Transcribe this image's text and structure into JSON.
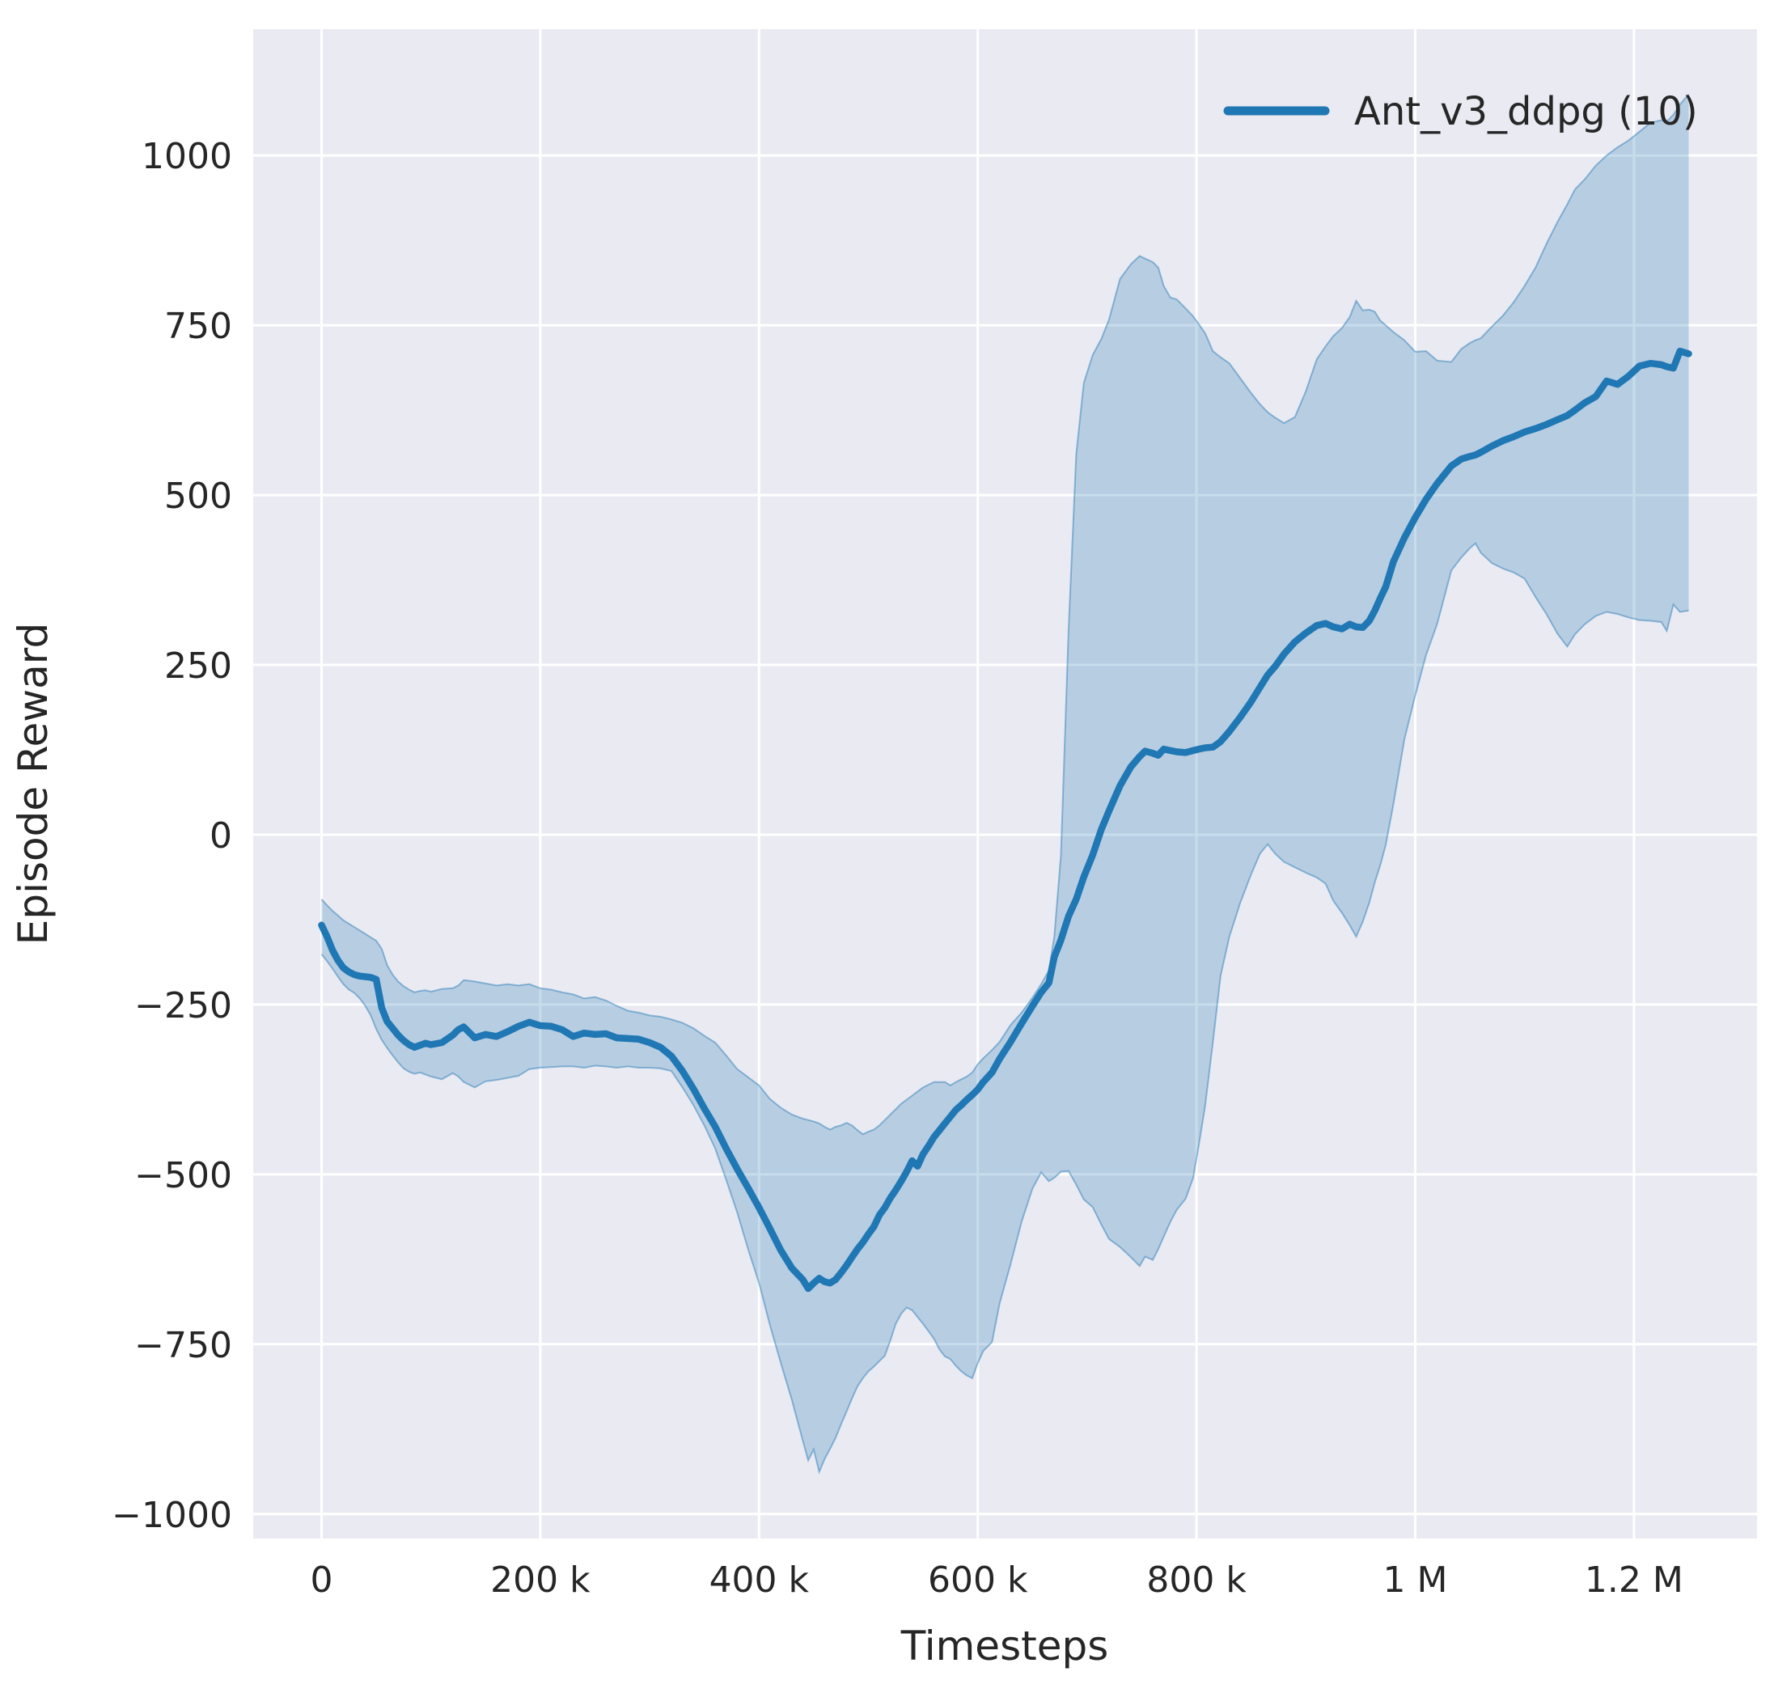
{
  "chart_data": {
    "type": "line",
    "title": "",
    "xlabel": "Timesteps",
    "ylabel": "Episode Reward",
    "x_unit_note": "x values stored in thousands of timesteps",
    "xlim": [
      -62.5,
      1312.5
    ],
    "ylim": [
      -1036,
      1186
    ],
    "grid": true,
    "legend_position": "upper right",
    "xticks": {
      "values": [
        0,
        200,
        400,
        600,
        800,
        1000,
        1200
      ],
      "labels": [
        "0",
        "200 k",
        "400 k",
        "600 k",
        "800 k",
        "1 M",
        "1.2 M"
      ]
    },
    "yticks": {
      "values": [
        -1000,
        -750,
        -500,
        -250,
        0,
        250,
        500,
        750,
        1000
      ],
      "labels": [
        "−1000",
        "−750",
        "−500",
        "−250",
        "0",
        "250",
        "500",
        "750",
        "1000"
      ]
    },
    "colors": {
      "line": "#1f77b4",
      "band": "#1f77b4",
      "band_opacity": 0.25,
      "band_edge_opacity": 0.45,
      "plot_bg": "#eaeaf2",
      "grid": "#ffffff",
      "text": "#262626"
    },
    "legend": [
      {
        "label": "Ant_v3_ddpg (10)",
        "color": "#1f77b4"
      }
    ],
    "series": [
      {
        "name": "Ant_v3_ddpg (10)",
        "point_format": [
          "x_thousands",
          "mean",
          "band_lower",
          "band_upper"
        ],
        "points": [
          [
            0,
            -133,
            -176,
            -95
          ],
          [
            5,
            -150,
            -186,
            -104
          ],
          [
            10,
            -170,
            -197,
            -112
          ],
          [
            15,
            -185,
            -209,
            -119
          ],
          [
            20,
            -196,
            -220,
            -126
          ],
          [
            25,
            -202,
            -228,
            -131
          ],
          [
            30,
            -206,
            -233,
            -136
          ],
          [
            35,
            -208,
            -241,
            -141
          ],
          [
            40,
            -209,
            -252,
            -146
          ],
          [
            45,
            -210,
            -266,
            -151
          ],
          [
            50,
            -213,
            -286,
            -156
          ],
          [
            55,
            -255,
            -302,
            -168
          ],
          [
            60,
            -275,
            -314,
            -192
          ],
          [
            65,
            -285,
            -325,
            -206
          ],
          [
            70,
            -295,
            -335,
            -216
          ],
          [
            75,
            -303,
            -344,
            -223
          ],
          [
            80,
            -309,
            -349,
            -228
          ],
          [
            85,
            -313,
            -352,
            -232
          ],
          [
            90,
            -310,
            -350,
            -230
          ],
          [
            95,
            -307,
            -353,
            -229
          ],
          [
            100,
            -309,
            -356,
            -231
          ],
          [
            110,
            -306,
            -360,
            -227
          ],
          [
            120,
            -295,
            -351,
            -226
          ],
          [
            125,
            -287,
            -356,
            -222
          ],
          [
            130,
            -283,
            -364,
            -214
          ],
          [
            140,
            -299,
            -372,
            -216
          ],
          [
            150,
            -294,
            -363,
            -219
          ],
          [
            160,
            -297,
            -361,
            -222
          ],
          [
            170,
            -290,
            -358,
            -220
          ],
          [
            180,
            -282,
            -355,
            -222
          ],
          [
            190,
            -276,
            -345,
            -220
          ],
          [
            200,
            -281,
            -343,
            -226
          ],
          [
            210,
            -282,
            -342,
            -228
          ],
          [
            220,
            -287,
            -341,
            -232
          ],
          [
            230,
            -297,
            -341,
            -235
          ],
          [
            240,
            -292,
            -343,
            -241
          ],
          [
            250,
            -294,
            -340,
            -239
          ],
          [
            260,
            -293,
            -341,
            -244
          ],
          [
            270,
            -299,
            -343,
            -252
          ],
          [
            280,
            -300,
            -341,
            -259
          ],
          [
            290,
            -301,
            -343,
            -262
          ],
          [
            300,
            -306,
            -343,
            -266
          ],
          [
            310,
            -313,
            -344,
            -268
          ],
          [
            320,
            -326,
            -348,
            -272
          ],
          [
            330,
            -348,
            -372,
            -277
          ],
          [
            340,
            -374,
            -398,
            -285
          ],
          [
            350,
            -403,
            -428,
            -296
          ],
          [
            360,
            -430,
            -462,
            -306
          ],
          [
            370,
            -462,
            -508,
            -325
          ],
          [
            380,
            -492,
            -556,
            -345
          ],
          [
            390,
            -520,
            -610,
            -357
          ],
          [
            400,
            -549,
            -660,
            -369
          ],
          [
            410,
            -580,
            -722,
            -389
          ],
          [
            420,
            -612,
            -778,
            -402
          ],
          [
            430,
            -638,
            -832,
            -412
          ],
          [
            440,
            -655,
            -892,
            -418
          ],
          [
            445,
            -668,
            -921,
            -420
          ],
          [
            450,
            -660,
            -905,
            -422
          ],
          [
            455,
            -653,
            -938,
            -425
          ],
          [
            460,
            -658,
            -919,
            -430
          ],
          [
            465,
            -660,
            -904,
            -434
          ],
          [
            470,
            -655,
            -888,
            -430
          ],
          [
            475,
            -645,
            -868,
            -428
          ],
          [
            480,
            -634,
            -849,
            -424
          ],
          [
            485,
            -622,
            -830,
            -428
          ],
          [
            490,
            -610,
            -812,
            -435
          ],
          [
            495,
            -600,
            -800,
            -441
          ],
          [
            500,
            -588,
            -790,
            -437
          ],
          [
            505,
            -577,
            -783,
            -434
          ],
          [
            510,
            -560,
            -775,
            -428
          ],
          [
            515,
            -549,
            -767,
            -420
          ],
          [
            520,
            -535,
            -745,
            -412
          ],
          [
            525,
            -523,
            -720,
            -404
          ],
          [
            530,
            -510,
            -705,
            -396
          ],
          [
            535,
            -496,
            -696,
            -390
          ],
          [
            540,
            -480,
            -700,
            -384
          ],
          [
            545,
            -488,
            -710,
            -378
          ],
          [
            550,
            -470,
            -720,
            -372
          ],
          [
            555,
            -458,
            -731,
            -368
          ],
          [
            560,
            -445,
            -742,
            -364
          ],
          [
            565,
            -435,
            -758,
            -364
          ],
          [
            570,
            -425,
            -768,
            -364
          ],
          [
            575,
            -415,
            -772,
            -369
          ],
          [
            580,
            -405,
            -782,
            -364
          ],
          [
            585,
            -398,
            -790,
            -360
          ],
          [
            590,
            -390,
            -796,
            -356
          ],
          [
            595,
            -383,
            -800,
            -350
          ],
          [
            600,
            -375,
            -778,
            -338
          ],
          [
            605,
            -364,
            -760,
            -329
          ],
          [
            613,
            -350,
            -747,
            -317
          ],
          [
            620,
            -330,
            -690,
            -305
          ],
          [
            630,
            -305,
            -632,
            -280
          ],
          [
            640,
            -278,
            -570,
            -262
          ],
          [
            650,
            -252,
            -521,
            -240
          ],
          [
            658,
            -232,
            -497,
            -220
          ],
          [
            665,
            -218,
            -510,
            -200
          ],
          [
            670,
            -180,
            -505,
            -150
          ],
          [
            676,
            -155,
            -496,
            -30
          ],
          [
            683,
            -120,
            -495,
            300
          ],
          [
            690,
            -95,
            -515,
            560
          ],
          [
            697,
            -62,
            -537,
            665
          ],
          [
            705,
            -30,
            -548,
            706
          ],
          [
            713,
            8,
            -574,
            730
          ],
          [
            720,
            35,
            -595,
            758
          ],
          [
            730,
            72,
            -607,
            818
          ],
          [
            740,
            100,
            -622,
            840
          ],
          [
            748,
            115,
            -635,
            852
          ],
          [
            753,
            123,
            -621,
            848
          ],
          [
            760,
            120,
            -626,
            843
          ],
          [
            765,
            117,
            -610,
            835
          ],
          [
            770,
            126,
            -592,
            808
          ],
          [
            776,
            124,
            -570,
            791
          ],
          [
            782,
            122,
            -552,
            788
          ],
          [
            790,
            121,
            -536,
            775
          ],
          [
            797,
            124,
            -505,
            763
          ],
          [
            802,
            126,
            -458,
            752
          ],
          [
            808,
            128,
            -398,
            738
          ],
          [
            815,
            129,
            -305,
            712
          ],
          [
            822,
            137,
            -208,
            703
          ],
          [
            830,
            152,
            -150,
            694
          ],
          [
            840,
            173,
            -100,
            672
          ],
          [
            850,
            196,
            -58,
            650
          ],
          [
            858,
            217,
            -28,
            634
          ],
          [
            865,
            235,
            -14,
            622
          ],
          [
            872,
            248,
            -28,
            614
          ],
          [
            880,
            266,
            -40,
            606
          ],
          [
            890,
            284,
            -48,
            615
          ],
          [
            900,
            297,
            -56,
            653
          ],
          [
            910,
            308,
            -63,
            700
          ],
          [
            918,
            311,
            -72,
            719
          ],
          [
            925,
            306,
            -97,
            734
          ],
          [
            933,
            303,
            -115,
            746
          ],
          [
            940,
            310,
            -133,
            762
          ],
          [
            946,
            306,
            -150,
            786
          ],
          [
            952,
            305,
            -128,
            772
          ],
          [
            958,
            315,
            -100,
            773
          ],
          [
            963,
            330,
            -70,
            770
          ],
          [
            968,
            348,
            -45,
            757
          ],
          [
            973,
            365,
            -15,
            750
          ],
          [
            980,
            402,
            45,
            740
          ],
          [
            990,
            437,
            140,
            728
          ],
          [
            1000,
            467,
            205,
            711
          ],
          [
            1010,
            494,
            265,
            712
          ],
          [
            1020,
            517,
            310,
            698
          ],
          [
            1033,
            543,
            389,
            696
          ],
          [
            1042,
            553,
            408,
            715
          ],
          [
            1050,
            557,
            422,
            724
          ],
          [
            1055,
            559,
            429,
            728
          ],
          [
            1060,
            563,
            415,
            731
          ],
          [
            1070,
            572,
            400,
            748
          ],
          [
            1080,
            580,
            392,
            764
          ],
          [
            1090,
            586,
            386,
            784
          ],
          [
            1100,
            593,
            377,
            808
          ],
          [
            1110,
            598,
            350,
            835
          ],
          [
            1120,
            604,
            325,
            870
          ],
          [
            1130,
            611,
            296,
            902
          ],
          [
            1139,
            617,
            277,
            928
          ],
          [
            1146,
            625,
            295,
            950
          ],
          [
            1155,
            636,
            310,
            965
          ],
          [
            1165,
            645,
            322,
            985
          ],
          [
            1175,
            668,
            328,
            1000
          ],
          [
            1185,
            663,
            325,
            1012
          ],
          [
            1195,
            675,
            320,
            1022
          ],
          [
            1205,
            690,
            316,
            1035
          ],
          [
            1215,
            694,
            315,
            1048
          ],
          [
            1225,
            692,
            313,
            1052
          ],
          [
            1230,
            689,
            300,
            1050
          ],
          [
            1236,
            687,
            339,
            1060
          ],
          [
            1242,
            712,
            328,
            1075
          ],
          [
            1250,
            708,
            330,
            1090
          ]
        ]
      }
    ]
  }
}
